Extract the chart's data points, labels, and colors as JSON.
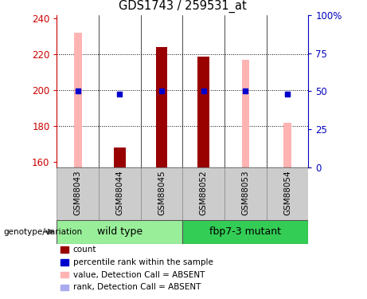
{
  "title": "GDS1743 / 259531_at",
  "samples": [
    "GSM88043",
    "GSM88044",
    "GSM88045",
    "GSM88052",
    "GSM88053",
    "GSM88054"
  ],
  "ylim_left": [
    157,
    242
  ],
  "ylim_right": [
    0,
    100
  ],
  "yticks_left": [
    160,
    180,
    200,
    220,
    240
  ],
  "yticks_right": [
    0,
    25,
    50,
    75,
    100
  ],
  "pink_bar_values": [
    232,
    null,
    null,
    219,
    217,
    182
  ],
  "dark_red_bar_values": [
    null,
    168,
    224,
    219,
    null,
    null
  ],
  "blue_square_values": [
    50,
    48,
    50,
    50,
    50,
    48
  ],
  "light_blue_square_values": [
    50,
    null,
    null,
    null,
    50,
    48
  ],
  "blue_square_visible": [
    true,
    true,
    true,
    true,
    true,
    true
  ],
  "light_blue_square_visible": [
    true,
    false,
    false,
    false,
    true,
    true
  ],
  "pink_bar_color": "#ffb3b3",
  "dark_red_bar_color": "#990000",
  "blue_sq_color": "#0000cc",
  "light_blue_sq_color": "#aaaaee",
  "left_axis_color": "#cc0000",
  "right_axis_color": "#0000bb",
  "pink_bar_width": 0.18,
  "dark_red_bar_width": 0.28,
  "wt_color": "#99ee99",
  "mut_color": "#33cc55",
  "sample_box_color": "#cccccc",
  "legend_items": [
    {
      "label": "count",
      "color": "#990000"
    },
    {
      "label": "percentile rank within the sample",
      "color": "#0000cc"
    },
    {
      "label": "value, Detection Call = ABSENT",
      "color": "#ffb3b3"
    },
    {
      "label": "rank, Detection Call = ABSENT",
      "color": "#aaaaee"
    }
  ],
  "right_axis_labels": [
    "0",
    "25",
    "50",
    "75",
    "100%"
  ]
}
